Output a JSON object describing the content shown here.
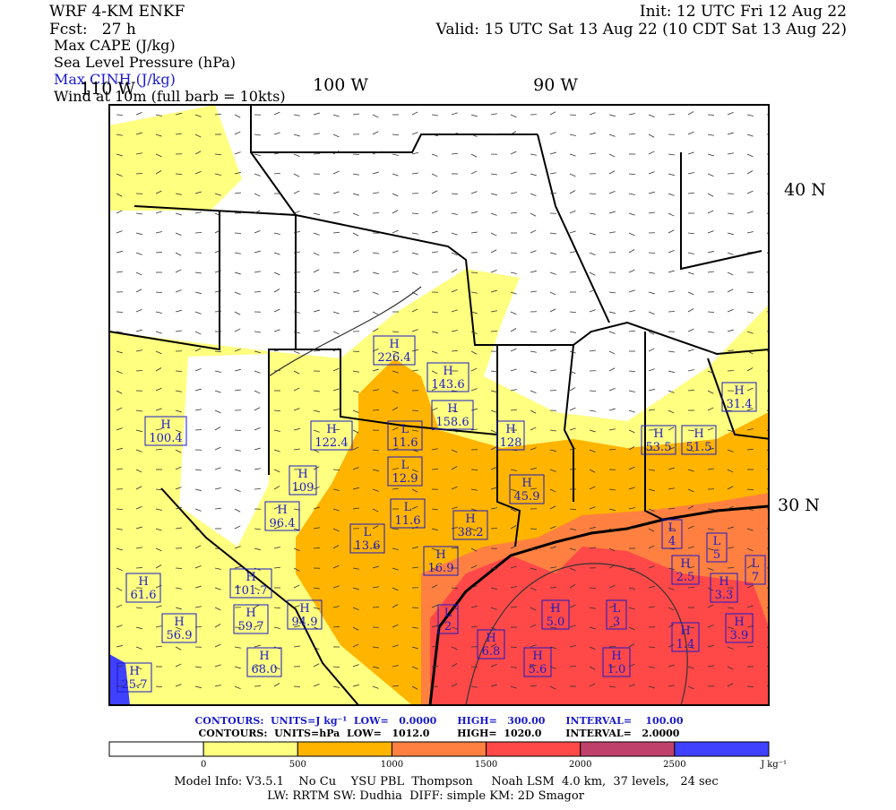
{
  "header": {
    "model": "WRF 4-KM ENKF",
    "forecast": "Fcst:   27 h",
    "init": "Init: 12 UTC Fri 12 Aug 22",
    "valid": "Valid: 15 UTC Sat 13 Aug 22 (10 CDT Sat 13 Aug 22)",
    "fields": [
      {
        "text": "Max CAPE (J/kg)",
        "color": "#000000"
      },
      {
        "text": "Sea Level Pressure (hPa)",
        "color": "#000000"
      },
      {
        "text": "Max CINH (J/kg)",
        "color": "#1a1acc"
      },
      {
        "text": "Wind at 10m (full barb = 10kts)",
        "color": "#000000"
      }
    ]
  },
  "map": {
    "lon_labels": [
      "110 W",
      "100 W",
      "90 W"
    ],
    "lat_labels": [
      "40 N",
      "30 N"
    ],
    "centers": [
      {
        "letter": "H",
        "value": "226.4"
      },
      {
        "letter": "H",
        "value": "143.6"
      },
      {
        "letter": "H",
        "value": "158.6"
      },
      {
        "letter": "H",
        "value": "128"
      },
      {
        "letter": "L",
        "value": "11.6"
      },
      {
        "letter": "H",
        "value": "122.4"
      },
      {
        "letter": "H",
        "value": "100.4"
      },
      {
        "letter": "H",
        "value": "31.4"
      },
      {
        "letter": "H",
        "value": "53.5"
      },
      {
        "letter": "H",
        "value": "51.5"
      },
      {
        "letter": "L",
        "value": "12.9"
      },
      {
        "letter": "H",
        "value": "109"
      },
      {
        "letter": "H",
        "value": "45.9"
      },
      {
        "letter": "H",
        "value": "96.4"
      },
      {
        "letter": "L",
        "value": "11.6"
      },
      {
        "letter": "H",
        "value": "38.2"
      },
      {
        "letter": "L",
        "value": "13.6"
      },
      {
        "letter": "H",
        "value": "16.9"
      },
      {
        "letter": "H",
        "value": "101.7"
      },
      {
        "letter": "H",
        "value": "61.6"
      },
      {
        "letter": "H",
        "value": "94.9"
      },
      {
        "letter": "H",
        "value": "59.7"
      },
      {
        "letter": "H",
        "value": "56.9"
      },
      {
        "letter": "L",
        "value": "2"
      },
      {
        "letter": "H",
        "value": "5.0"
      },
      {
        "letter": "L",
        "value": "3"
      },
      {
        "letter": "H",
        "value": "6.8"
      },
      {
        "letter": "H",
        "value": "5.6"
      },
      {
        "letter": "H",
        "value": "1.0"
      },
      {
        "letter": "H",
        "value": "1.4"
      },
      {
        "letter": "H",
        "value": "3.9"
      },
      {
        "letter": "H",
        "value": "2.5"
      },
      {
        "letter": "H",
        "value": "3.3"
      },
      {
        "letter": "L",
        "value": "5"
      },
      {
        "letter": "L",
        "value": "7"
      },
      {
        "letter": "L",
        "value": "4"
      },
      {
        "letter": "H",
        "value": "68.0"
      },
      {
        "letter": "H",
        "value": "25.7"
      }
    ]
  },
  "contours": [
    {
      "text": "CONTOURS:  UNITS=J kg⁻¹  LOW=   0.0000      HIGH=   300.00      INTERVAL=    100.00",
      "color": "#1a1acc"
    },
    {
      "text": "CONTOURS:  UNITS=hPa  LOW=   1012.0        HIGH=  1020.0       INTERVAL=   2.0000",
      "color": "#000000"
    }
  ],
  "colorbar": {
    "colors": [
      "#ffffff",
      "#ffff80",
      "#ffb400",
      "#ff8040",
      "#ff4848",
      "#c0406c",
      "#4040ff"
    ],
    "ticks": [
      0,
      500,
      1000,
      1500,
      2000,
      2500
    ],
    "unit": "J kg⁻¹"
  },
  "footer": [
    "Model Info: V3.5.1    No Cu    YSU PBL  Thompson     Noah LSM  4.0 km,  37 levels,   24 sec",
    "LW: RRTM SW: Dudhia  DIFF: simple KM: 2D Smagor"
  ]
}
